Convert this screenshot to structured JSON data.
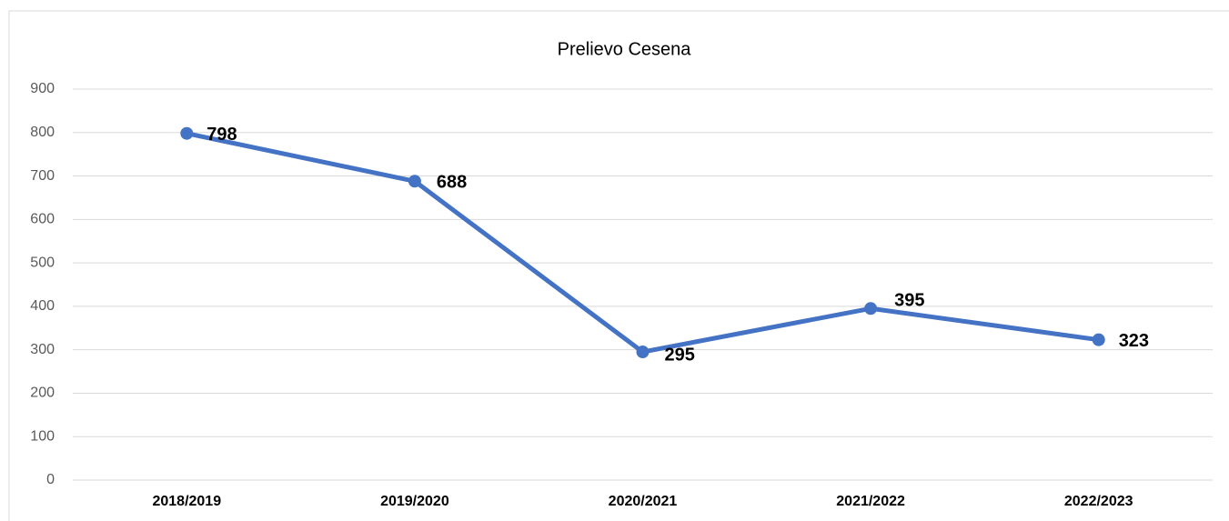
{
  "chart_data": {
    "type": "line",
    "title": "Prelievo Cesena",
    "categories": [
      "2018/2019",
      "2019/2020",
      "2020/2021",
      "2021/2022",
      "2022/2023"
    ],
    "series": [
      {
        "name": "Prelievo Cesena",
        "color": "#4472c4",
        "values": [
          798,
          688,
          295,
          395,
          323
        ]
      }
    ],
    "ylim": [
      0,
      900
    ],
    "yticks": [
      0,
      100,
      200,
      300,
      400,
      500,
      600,
      700,
      800,
      900
    ],
    "grid": true
  }
}
